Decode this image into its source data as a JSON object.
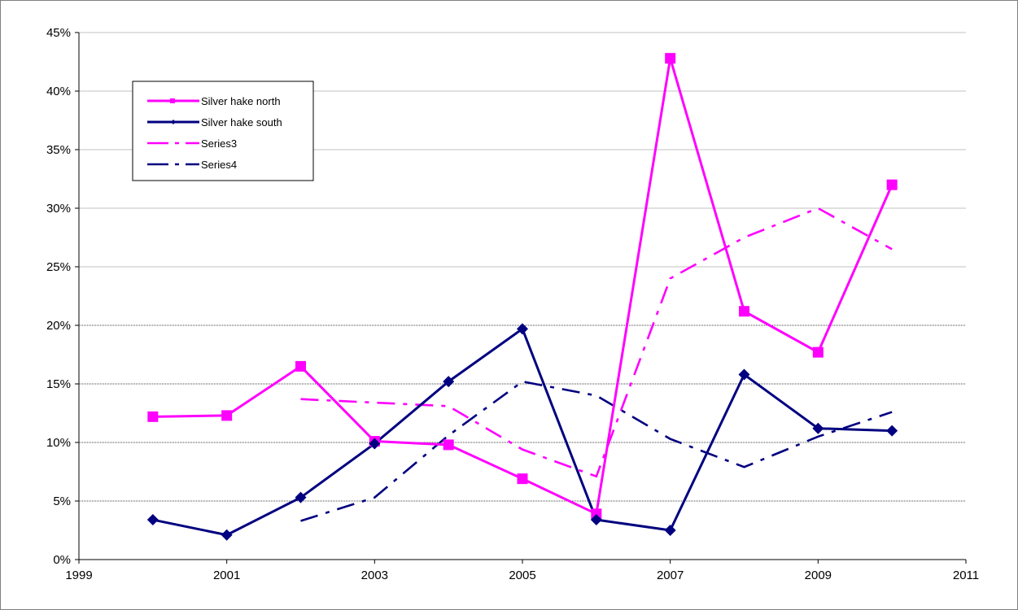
{
  "chart_data": {
    "type": "line",
    "title": "",
    "xlabel": "",
    "ylabel": "",
    "xlim": [
      1999,
      2011
    ],
    "ylim": [
      0,
      45
    ],
    "x_ticks": [
      1999,
      2001,
      2003,
      2005,
      2007,
      2009,
      2011
    ],
    "x_tick_labels": [
      "1999",
      "2001",
      "2003",
      "2005",
      "2007",
      "2009",
      "2011"
    ],
    "y_ticks": [
      0,
      5,
      10,
      15,
      20,
      25,
      30,
      35,
      40,
      45
    ],
    "y_tick_labels": [
      "0%",
      "5%",
      "10%",
      "15%",
      "20%",
      "25%",
      "30%",
      "35%",
      "40%",
      "45%"
    ],
    "grid": "horizontal",
    "legend_position": "top-left",
    "series": [
      {
        "name": "Silver hake north",
        "color": "#ff00ff",
        "line": "solid",
        "marker": "square",
        "x": [
          2000,
          2001,
          2002,
          2003,
          2004,
          2005,
          2006,
          2007,
          2008,
          2009,
          2010
        ],
        "y": [
          12.2,
          12.3,
          16.5,
          10.1,
          9.8,
          6.9,
          3.9,
          42.8,
          21.2,
          17.7,
          32.0
        ]
      },
      {
        "name": "Silver hake south",
        "color": "#000080",
        "line": "solid",
        "marker": "diamond",
        "x": [
          2000,
          2001,
          2002,
          2003,
          2004,
          2005,
          2006,
          2007,
          2008,
          2009,
          2010
        ],
        "y": [
          3.4,
          2.1,
          5.3,
          9.9,
          15.2,
          19.7,
          3.4,
          2.5,
          15.8,
          11.2,
          11.0
        ]
      },
      {
        "name": "Series3",
        "color": "#ff00ff",
        "line": "dashdot",
        "marker": "none",
        "x": [
          2002,
          2003,
          2004,
          2005,
          2006,
          2007,
          2008,
          2009,
          2010
        ],
        "y": [
          13.7,
          13.4,
          13.1,
          9.4,
          7.1,
          24.0,
          27.5,
          30.0,
          26.5
        ]
      },
      {
        "name": "Series4",
        "color": "#000080",
        "line": "dashdot",
        "marker": "none",
        "x": [
          2002,
          2003,
          2004,
          2005,
          2006,
          2007,
          2008,
          2009,
          2010
        ],
        "y": [
          3.3,
          5.3,
          10.6,
          15.2,
          14.0,
          10.3,
          7.9,
          10.5,
          12.6
        ]
      }
    ]
  }
}
